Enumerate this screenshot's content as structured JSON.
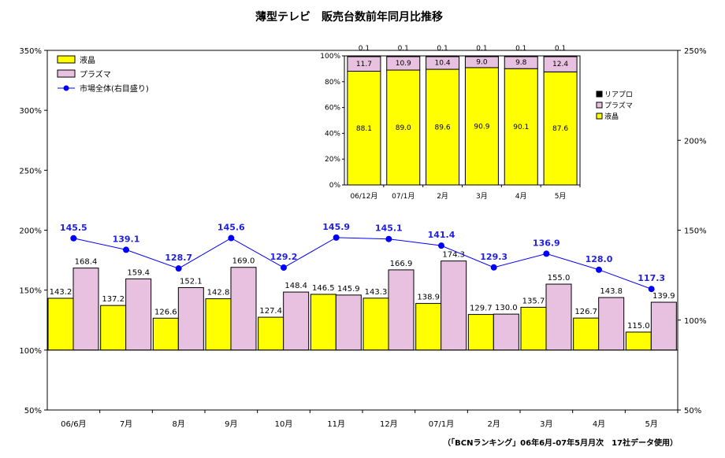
{
  "chart_data": [
    {
      "type": "bar",
      "title": "薄型テレビ　販売台数前年同月比推移",
      "categories": [
        "06/6月",
        "7月",
        "8月",
        "9月",
        "10月",
        "11月",
        "12月",
        "07/1月",
        "2月",
        "3月",
        "4月",
        "5月"
      ],
      "series": [
        {
          "name": "液晶",
          "axis": "left",
          "color": "#ffff00",
          "values": [
            143.2,
            137.2,
            126.6,
            142.8,
            127.4,
            146.5,
            143.3,
            138.9,
            129.7,
            135.7,
            126.7,
            115.0
          ]
        },
        {
          "name": "プラズマ",
          "axis": "left",
          "color": "#e8c0e0",
          "values": [
            168.4,
            159.4,
            152.1,
            169.0,
            148.4,
            145.9,
            166.9,
            174.3,
            130.0,
            155.0,
            143.8,
            139.9
          ]
        },
        {
          "name": "市場全体(右目盛り)",
          "type": "line",
          "axis": "right",
          "color": "#0000ff",
          "values": [
            145.5,
            139.1,
            128.7,
            145.6,
            129.2,
            145.9,
            145.1,
            141.4,
            129.3,
            136.9,
            128.0,
            117.3
          ]
        }
      ],
      "y_left": {
        "min": 50,
        "max": 350,
        "ticks": [
          "50%",
          "100%",
          "150%",
          "200%",
          "250%",
          "300%",
          "350%"
        ],
        "baseline": 100
      },
      "y_right": {
        "min": 50,
        "max": 250,
        "ticks": [
          "50%",
          "100%",
          "150%",
          "200%",
          "250%"
        ]
      },
      "legend_position": "top-left",
      "source_note": "（「BCNランキング」06年6月-07年5月月次　17社データ使用）"
    },
    {
      "type": "bar",
      "stacked": true,
      "categories": [
        "06/12月",
        "07/1月",
        "2月",
        "3月",
        "4月",
        "5月"
      ],
      "series": [
        {
          "name": "液晶",
          "color": "#ffff00",
          "values": [
            88.1,
            89.0,
            89.6,
            90.9,
            90.1,
            87.6
          ]
        },
        {
          "name": "プラズマ",
          "color": "#e8c0e0",
          "values": [
            11.7,
            10.9,
            10.4,
            9.0,
            9.8,
            12.4
          ]
        },
        {
          "name": "リアプロ",
          "color": "#000000",
          "values": [
            0.1,
            0.1,
            0.1,
            0.1,
            0.1,
            0.1
          ]
        }
      ],
      "ylim": [
        0,
        100
      ],
      "y_ticks": [
        "0%",
        "20%",
        "40%",
        "60%",
        "80%",
        "100%"
      ],
      "legend_position": "right"
    }
  ]
}
